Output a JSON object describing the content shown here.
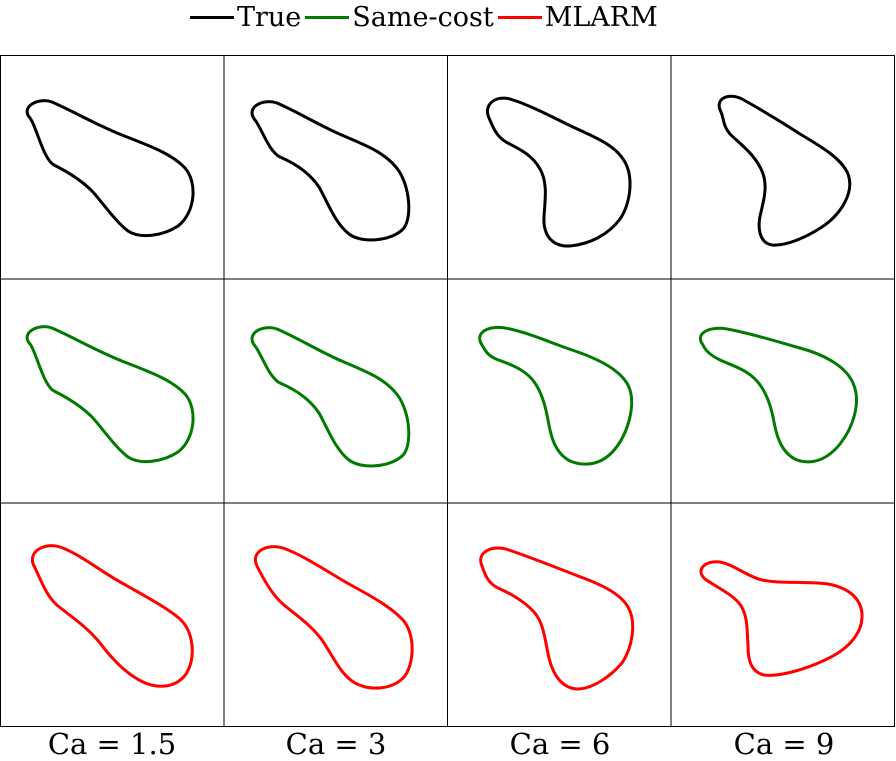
{
  "legend": {
    "items": [
      {
        "label": "True",
        "color": "#000000"
      },
      {
        "label": "Same-cost",
        "color": "#007a00"
      },
      {
        "label": "MLARM",
        "color": "#ff0000"
      }
    ]
  },
  "rows": [
    {
      "series": "True",
      "color": "#000000"
    },
    {
      "series": "Same-cost",
      "color": "#007a00"
    },
    {
      "series": "MLARM",
      "color": "#ff0000"
    }
  ],
  "columns": [
    {
      "caption": "Ca = 1.5"
    },
    {
      "caption": "Ca = 3"
    },
    {
      "caption": "Ca = 6"
    },
    {
      "caption": "Ca = 9"
    }
  ]
}
